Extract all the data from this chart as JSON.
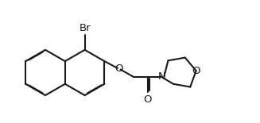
{
  "bg_color": "#ffffff",
  "line_color": "#1a1a1a",
  "lw": 1.5,
  "font_size": 9.5,
  "labels": {
    "Br": "Br",
    "O_ether": "O",
    "O_carbonyl": "O",
    "N": "N",
    "O_morpholine": "O"
  }
}
